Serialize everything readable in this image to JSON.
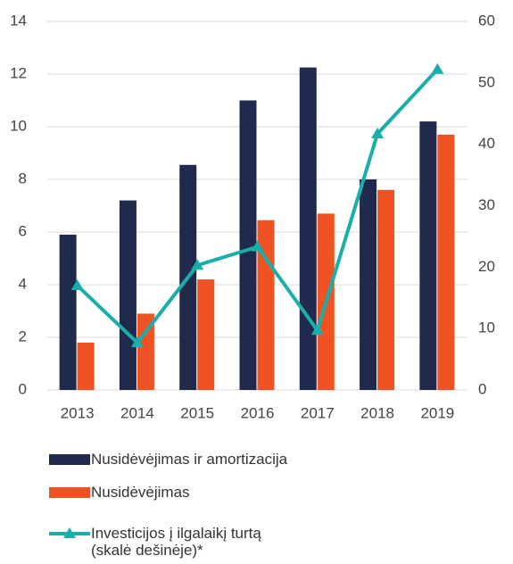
{
  "chart_data": {
    "type": "bar",
    "categories": [
      "2013",
      "2014",
      "2015",
      "2016",
      "2017",
      "2018",
      "2019"
    ],
    "series": [
      {
        "name": "Nusidėvėjimas ir amortizacija",
        "color": "#1f2a4d",
        "type": "bar",
        "values": [
          5.9,
          7.2,
          8.55,
          11.0,
          12.25,
          8.0,
          10.2
        ]
      },
      {
        "name": "Nusidėvėjimas",
        "color": "#f05323",
        "type": "bar",
        "values": [
          1.8,
          2.9,
          4.2,
          6.45,
          6.7,
          7.6,
          9.7
        ]
      },
      {
        "name": "Investicijos į ilgalaikį turtą (skalė dešinėje)*",
        "color": "#1aaeaa",
        "type": "line",
        "axis": "y2",
        "values": [
          17.0,
          7.7,
          20.3,
          23.3,
          9.7,
          41.7,
          52.2
        ]
      }
    ],
    "ylim": [
      0,
      14
    ],
    "yticks": [
      0,
      2,
      4,
      6,
      8,
      10,
      12,
      14
    ],
    "y2lim": [
      0,
      60
    ],
    "y2ticks": [
      0,
      10,
      20,
      30,
      40,
      50,
      60
    ],
    "grid": true,
    "legend": "bottom"
  }
}
